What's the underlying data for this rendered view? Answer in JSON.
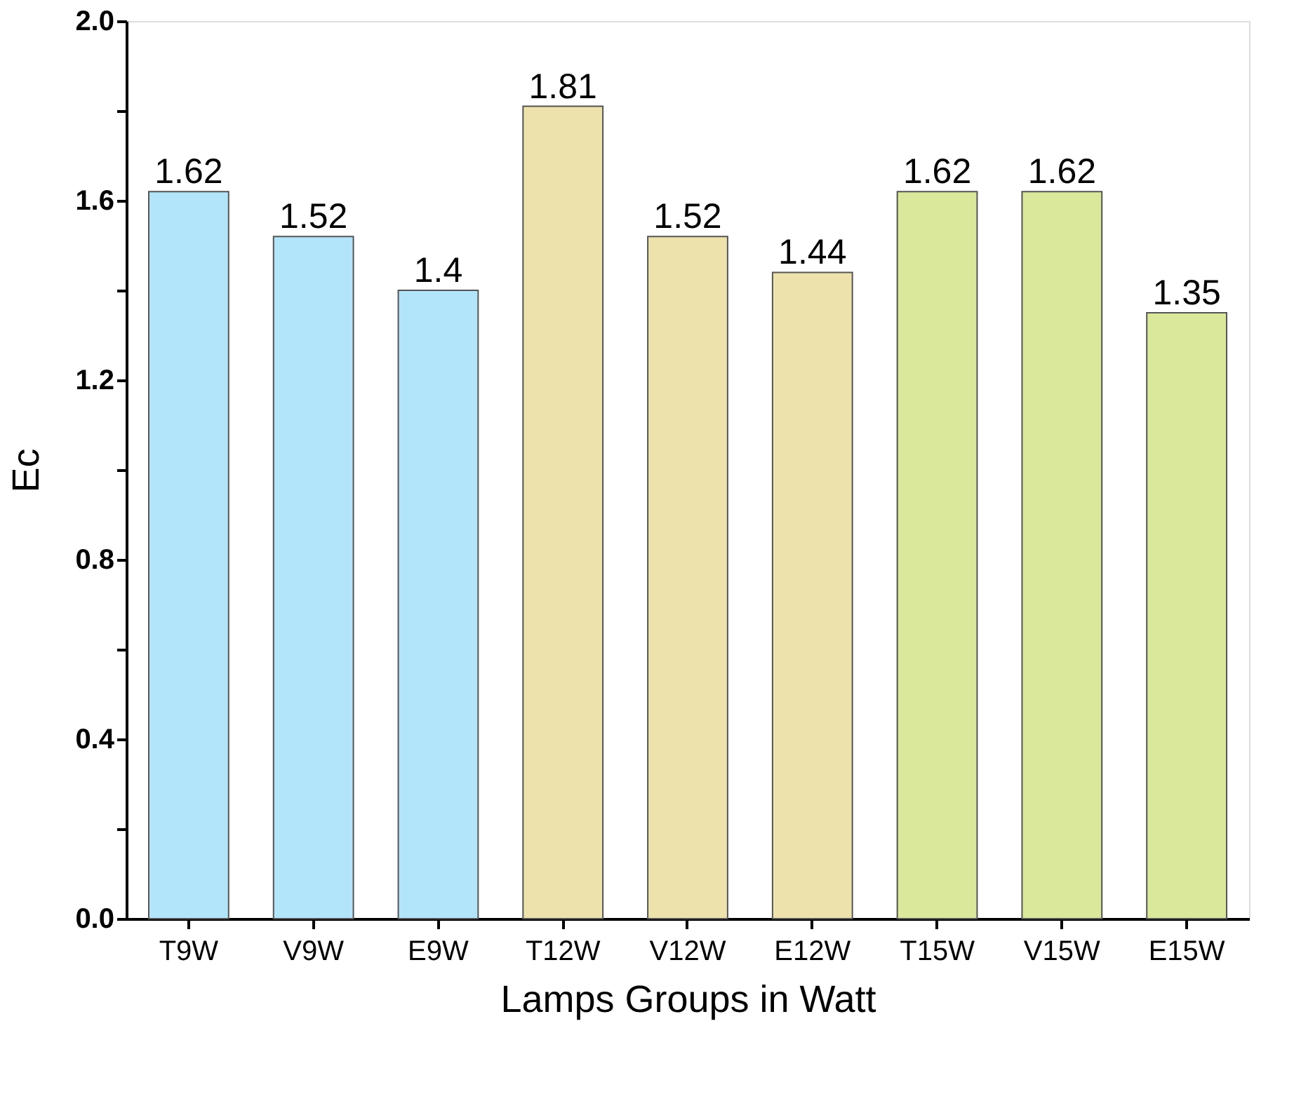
{
  "chart_data": {
    "type": "bar",
    "xlabel": "Lamps Groups in Watt",
    "ylabel": "Ec",
    "categories": [
      "T9W",
      "V9W",
      "E9W",
      "T12W",
      "V12W",
      "E12W",
      "T15W",
      "V15W",
      "E15W"
    ],
    "values": [
      1.62,
      1.52,
      1.4,
      1.81,
      1.52,
      1.44,
      1.62,
      1.62,
      1.35
    ],
    "colors": [
      "#b3e5fa",
      "#b3e5fa",
      "#b3e5fa",
      "#ede2ac",
      "#ede2ac",
      "#ede2ac",
      "#d9e89b",
      "#d9e89b",
      "#d9e89b"
    ],
    "ylim": [
      0,
      2.0
    ],
    "yticks": [
      {
        "value": 0,
        "label": "0.0"
      },
      {
        "value": 0.2,
        "label": null
      },
      0.4,
      {
        "value": 0.6,
        "label": null
      },
      0.8,
      {
        "value": 1.0,
        "label": null
      },
      1.2,
      {
        "value": 1.4,
        "label": null
      },
      1.6,
      {
        "value": 1.8,
        "label": null
      },
      {
        "value": 2.0,
        "label": "2.0"
      }
    ],
    "data_labels": true,
    "grid": false,
    "legend": false
  }
}
